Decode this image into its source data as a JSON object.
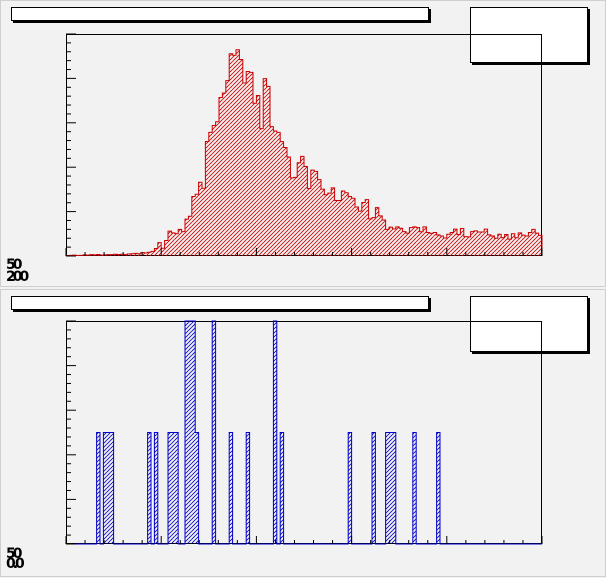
{
  "pads": [
    {
      "title": "",
      "stats": "",
      "corner_labels": [
        "50",
        "200"
      ]
    },
    {
      "title": "",
      "stats": "",
      "corner_labels": [
        "50",
        "0.0"
      ]
    }
  ],
  "colors": {
    "hist1": "#cc0000",
    "hist2": "#0000cc",
    "frame": "#000000",
    "background": "#f2f2f2"
  },
  "chart_data": [
    {
      "type": "bar",
      "style": "step-histogram-hatched",
      "color": "#cc0000",
      "xlim": [
        0,
        100
      ],
      "ylim": [
        0,
        100
      ],
      "grid": false,
      "values": [
        0.2,
        0.3,
        0.4,
        0.2,
        0.3,
        0.5,
        0.4,
        0.6,
        0.5,
        0.7,
        0.4,
        0.5,
        0.6,
        0.6,
        0.8,
        0.7,
        0.8,
        0.6,
        0.9,
        1.0,
        1.2,
        1.0,
        1.5,
        1.4,
        1.7,
        2.1,
        3.4,
        6.0,
        3.5,
        7.0,
        11.2,
        10.4,
        10.1,
        12.0,
        11.0,
        16.6,
        17.9,
        26.8,
        27.8,
        33.2,
        30.5,
        51.6,
        55.7,
        58.8,
        60.5,
        71.4,
        73.4,
        79.0,
        91.1,
        90.4,
        92.9,
        88.5,
        77.9,
        83.1,
        82.7,
        68.8,
        72.3,
        57.4,
        79.9,
        76.4,
        58.3,
        56.3,
        55.7,
        51.5,
        48.9,
        44.6,
        35.2,
        35.4,
        42.0,
        44.9,
        40.3,
        30.4,
        38.7,
        38.1,
        34.4,
        30.1,
        27.6,
        28.3,
        30.7,
        25.0,
        25.0,
        29.3,
        28.5,
        26.8,
        26.0,
        22.1,
        20.2,
        24.1,
        25.4,
        16.7,
        17.3,
        21.8,
        18.1,
        16.2,
        12.0,
        13.0,
        12.2,
        13.1,
        12.5,
        11.0,
        10.3,
        12.8,
        13.1,
        12.8,
        10.9,
        13.1,
        10.6,
        10.2,
        10.6,
        9.5,
        9.0,
        8.1,
        9.8,
        10.6,
        12.1,
        9.7,
        12.4,
        8.7,
        8.6,
        11.0,
        11.3,
        10.8,
        10.8,
        12.1,
        9.5,
        9.0,
        8.0,
        9.8,
        8.3,
        9.7,
        7.6,
        10.0,
        8.2,
        10.4,
        9.4,
        9.0,
        10.6,
        12.0,
        10.3,
        9.3
      ]
    },
    {
      "type": "bar",
      "style": "step-histogram-hatched",
      "color": "#0000cc",
      "xlim": [
        0,
        100
      ],
      "ylim": [
        0,
        100
      ],
      "grid": false,
      "values": [
        0,
        0,
        0,
        0,
        0,
        0,
        0,
        0,
        0,
        50,
        0,
        50,
        50,
        50,
        0,
        0,
        0,
        0,
        0,
        0,
        0,
        0,
        0,
        0,
        50,
        0,
        50,
        0,
        0,
        0,
        50,
        50,
        50,
        0,
        0,
        100,
        100,
        100,
        50,
        0,
        0,
        0,
        0,
        100,
        0,
        0,
        0,
        0,
        50,
        0,
        0,
        0,
        0,
        50,
        0,
        0,
        0,
        0,
        0,
        0,
        0,
        100,
        0,
        50,
        0,
        0,
        0,
        0,
        0,
        0,
        0,
        0,
        0,
        0,
        0,
        0,
        0,
        0,
        0,
        0,
        0,
        0,
        0,
        50,
        0,
        0,
        0,
        0,
        0,
        0,
        50,
        0,
        0,
        0,
        50,
        50,
        50,
        0,
        0,
        0,
        0,
        0,
        50,
        0,
        0,
        0,
        0,
        0,
        0,
        50,
        0,
        0,
        0,
        0,
        0,
        0,
        0,
        0,
        0,
        0,
        0,
        0,
        0,
        0,
        0,
        0,
        0,
        0,
        0,
        0,
        0,
        0,
        0,
        0,
        0,
        0,
        0,
        0,
        0,
        0
      ]
    }
  ]
}
